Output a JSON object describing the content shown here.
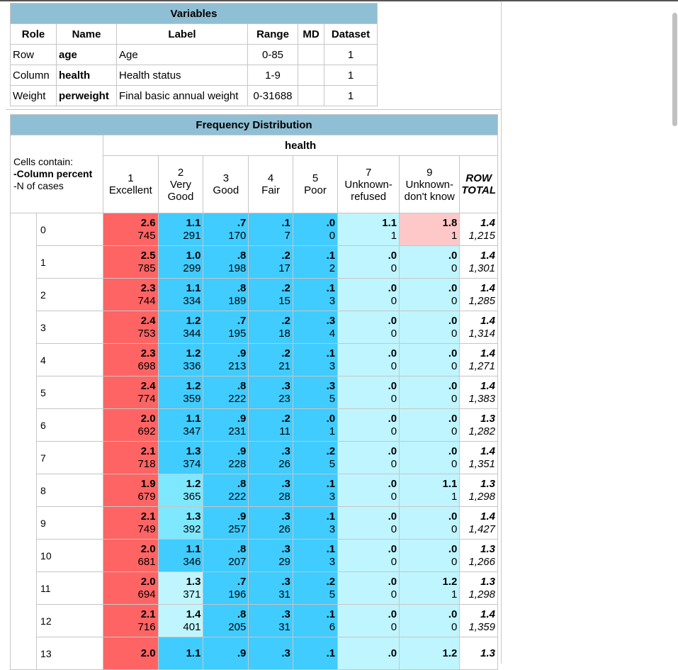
{
  "colors": {
    "title_bg": "#8fbfd4",
    "strong_high": "#ff6464",
    "medium_low": "#40ccff",
    "light_low": "#7de8ff",
    "pale_low": "#bff5ff",
    "pale_high": "#ffc8c8"
  },
  "variables": {
    "title": "Variables",
    "headers": [
      "Role",
      "Name",
      "Label",
      "Range",
      "MD",
      "Dataset"
    ],
    "rows": [
      {
        "role": "Row",
        "name": "age",
        "label": "Age",
        "range": "0-85",
        "md": "",
        "dataset": "1"
      },
      {
        "role": "Column",
        "name": "health",
        "label": "Health status",
        "range": "1-9",
        "md": "",
        "dataset": "1"
      },
      {
        "role": "Weight",
        "name": "perweight",
        "label": "Final basic annual weight",
        "range": "0-31688",
        "md": "",
        "dataset": "1"
      }
    ]
  },
  "frequency": {
    "title": "Frequency Distribution",
    "column_variable": "health",
    "cells_contain": "Cells contain:",
    "cells_line1": "-Column percent",
    "cells_line2": "-N of cases",
    "columns": [
      {
        "code": "1",
        "label": "Excellent"
      },
      {
        "code": "2",
        "label": "Very Good"
      },
      {
        "code": "3",
        "label": "Good"
      },
      {
        "code": "4",
        "label": "Fair"
      },
      {
        "code": "5",
        "label": "Poor"
      },
      {
        "code": "7",
        "label": "Unknown-refused"
      },
      {
        "code": "9",
        "label": "Unknown-don't know"
      }
    ],
    "row_total_label_1": "ROW",
    "row_total_label_2": "TOTAL",
    "rows": [
      {
        "label": "0",
        "cells": [
          [
            "2.6",
            "745"
          ],
          [
            "1.1",
            "291"
          ],
          [
            ".7",
            "170"
          ],
          [
            ".1",
            "7"
          ],
          [
            ".0",
            "0"
          ],
          [
            "1.1",
            "1"
          ],
          [
            "1.8",
            "1"
          ]
        ],
        "total": [
          "1.4",
          "1,215"
        ]
      },
      {
        "label": "1",
        "cells": [
          [
            "2.5",
            "785"
          ],
          [
            "1.0",
            "299"
          ],
          [
            ".8",
            "198"
          ],
          [
            ".2",
            "17"
          ],
          [
            ".1",
            "2"
          ],
          [
            ".0",
            "0"
          ],
          [
            ".0",
            "0"
          ]
        ],
        "total": [
          "1.4",
          "1,301"
        ]
      },
      {
        "label": "2",
        "cells": [
          [
            "2.3",
            "744"
          ],
          [
            "1.1",
            "334"
          ],
          [
            ".8",
            "189"
          ],
          [
            ".2",
            "15"
          ],
          [
            ".1",
            "3"
          ],
          [
            ".0",
            "0"
          ],
          [
            ".0",
            "0"
          ]
        ],
        "total": [
          "1.4",
          "1,285"
        ]
      },
      {
        "label": "3",
        "cells": [
          [
            "2.4",
            "753"
          ],
          [
            "1.2",
            "344"
          ],
          [
            ".7",
            "195"
          ],
          [
            ".2",
            "18"
          ],
          [
            ".3",
            "4"
          ],
          [
            ".0",
            "0"
          ],
          [
            ".0",
            "0"
          ]
        ],
        "total": [
          "1.4",
          "1,314"
        ]
      },
      {
        "label": "4",
        "cells": [
          [
            "2.3",
            "698"
          ],
          [
            "1.2",
            "336"
          ],
          [
            ".9",
            "213"
          ],
          [
            ".2",
            "21"
          ],
          [
            ".1",
            "3"
          ],
          [
            ".0",
            "0"
          ],
          [
            ".0",
            "0"
          ]
        ],
        "total": [
          "1.4",
          "1,271"
        ]
      },
      {
        "label": "5",
        "cells": [
          [
            "2.4",
            "774"
          ],
          [
            "1.2",
            "359"
          ],
          [
            ".8",
            "222"
          ],
          [
            ".3",
            "23"
          ],
          [
            ".3",
            "5"
          ],
          [
            ".0",
            "0"
          ],
          [
            ".0",
            "0"
          ]
        ],
        "total": [
          "1.4",
          "1,383"
        ]
      },
      {
        "label": "6",
        "cells": [
          [
            "2.0",
            "692"
          ],
          [
            "1.1",
            "347"
          ],
          [
            ".9",
            "231"
          ],
          [
            ".2",
            "11"
          ],
          [
            ".0",
            "1"
          ],
          [
            ".0",
            "0"
          ],
          [
            ".0",
            "0"
          ]
        ],
        "total": [
          "1.3",
          "1,282"
        ]
      },
      {
        "label": "7",
        "cells": [
          [
            "2.1",
            "718"
          ],
          [
            "1.3",
            "374"
          ],
          [
            ".9",
            "228"
          ],
          [
            ".3",
            "26"
          ],
          [
            ".2",
            "5"
          ],
          [
            ".0",
            "0"
          ],
          [
            ".0",
            "0"
          ]
        ],
        "total": [
          "1.4",
          "1,351"
        ]
      },
      {
        "label": "8",
        "cells": [
          [
            "1.9",
            "679"
          ],
          [
            "1.2",
            "365"
          ],
          [
            ".8",
            "222"
          ],
          [
            ".3",
            "28"
          ],
          [
            ".1",
            "3"
          ],
          [
            ".0",
            "0"
          ],
          [
            "1.1",
            "1"
          ]
        ],
        "total": [
          "1.3",
          "1,298"
        ]
      },
      {
        "label": "9",
        "cells": [
          [
            "2.1",
            "749"
          ],
          [
            "1.3",
            "392"
          ],
          [
            ".9",
            "257"
          ],
          [
            ".3",
            "26"
          ],
          [
            ".1",
            "3"
          ],
          [
            ".0",
            "0"
          ],
          [
            ".0",
            "0"
          ]
        ],
        "total": [
          "1.4",
          "1,427"
        ]
      },
      {
        "label": "10",
        "cells": [
          [
            "2.0",
            "681"
          ],
          [
            "1.1",
            "346"
          ],
          [
            ".8",
            "207"
          ],
          [
            ".3",
            "29"
          ],
          [
            ".1",
            "3"
          ],
          [
            ".0",
            "0"
          ],
          [
            ".0",
            "0"
          ]
        ],
        "total": [
          "1.3",
          "1,266"
        ]
      },
      {
        "label": "11",
        "cells": [
          [
            "2.0",
            "694"
          ],
          [
            "1.3",
            "371"
          ],
          [
            ".7",
            "196"
          ],
          [
            ".3",
            "31"
          ],
          [
            ".2",
            "5"
          ],
          [
            ".0",
            "0"
          ],
          [
            "1.2",
            "1"
          ]
        ],
        "total": [
          "1.3",
          "1,298"
        ]
      },
      {
        "label": "12",
        "cells": [
          [
            "2.1",
            "716"
          ],
          [
            "1.4",
            "401"
          ],
          [
            ".8",
            "205"
          ],
          [
            ".3",
            "31"
          ],
          [
            ".1",
            "6"
          ],
          [
            ".0",
            "0"
          ],
          [
            ".0",
            "0"
          ]
        ],
        "total": [
          "1.4",
          "1,359"
        ]
      },
      {
        "label": "13",
        "cells": [
          [
            "2.0",
            ""
          ],
          [
            "1.1",
            ""
          ],
          [
            ".9",
            ""
          ],
          [
            ".3",
            ""
          ],
          [
            ".1",
            ""
          ],
          [
            ".0",
            ""
          ],
          [
            "1.2",
            ""
          ]
        ],
        "total": [
          "1.3",
          ""
        ]
      }
    ],
    "cell_colors": [
      [
        "strong_high",
        "medium_low",
        "medium_low",
        "medium_low",
        "medium_low",
        "pale_low",
        "pale_high"
      ],
      [
        "strong_high",
        "medium_low",
        "medium_low",
        "medium_low",
        "medium_low",
        "pale_low",
        "pale_low"
      ],
      [
        "strong_high",
        "medium_low",
        "medium_low",
        "medium_low",
        "medium_low",
        "pale_low",
        "pale_low"
      ],
      [
        "strong_high",
        "medium_low",
        "medium_low",
        "medium_low",
        "medium_low",
        "pale_low",
        "pale_low"
      ],
      [
        "strong_high",
        "medium_low",
        "medium_low",
        "medium_low",
        "medium_low",
        "pale_low",
        "pale_low"
      ],
      [
        "strong_high",
        "medium_low",
        "medium_low",
        "medium_low",
        "medium_low",
        "pale_low",
        "pale_low"
      ],
      [
        "strong_high",
        "medium_low",
        "medium_low",
        "medium_low",
        "medium_low",
        "pale_low",
        "pale_low"
      ],
      [
        "strong_high",
        "medium_low",
        "medium_low",
        "medium_low",
        "medium_low",
        "pale_low",
        "pale_low"
      ],
      [
        "strong_high",
        "light_low",
        "medium_low",
        "medium_low",
        "medium_low",
        "pale_low",
        "pale_low"
      ],
      [
        "strong_high",
        "light_low",
        "medium_low",
        "medium_low",
        "medium_low",
        "pale_low",
        "pale_low"
      ],
      [
        "strong_high",
        "medium_low",
        "medium_low",
        "medium_low",
        "medium_low",
        "pale_low",
        "pale_low"
      ],
      [
        "strong_high",
        "pale_low",
        "medium_low",
        "medium_low",
        "medium_low",
        "pale_low",
        "pale_low"
      ],
      [
        "strong_high",
        "pale_low",
        "medium_low",
        "medium_low",
        "medium_low",
        "pale_low",
        "pale_low"
      ],
      [
        "strong_high",
        "medium_low",
        "medium_low",
        "medium_low",
        "medium_low",
        "pale_low",
        "pale_low"
      ]
    ]
  }
}
